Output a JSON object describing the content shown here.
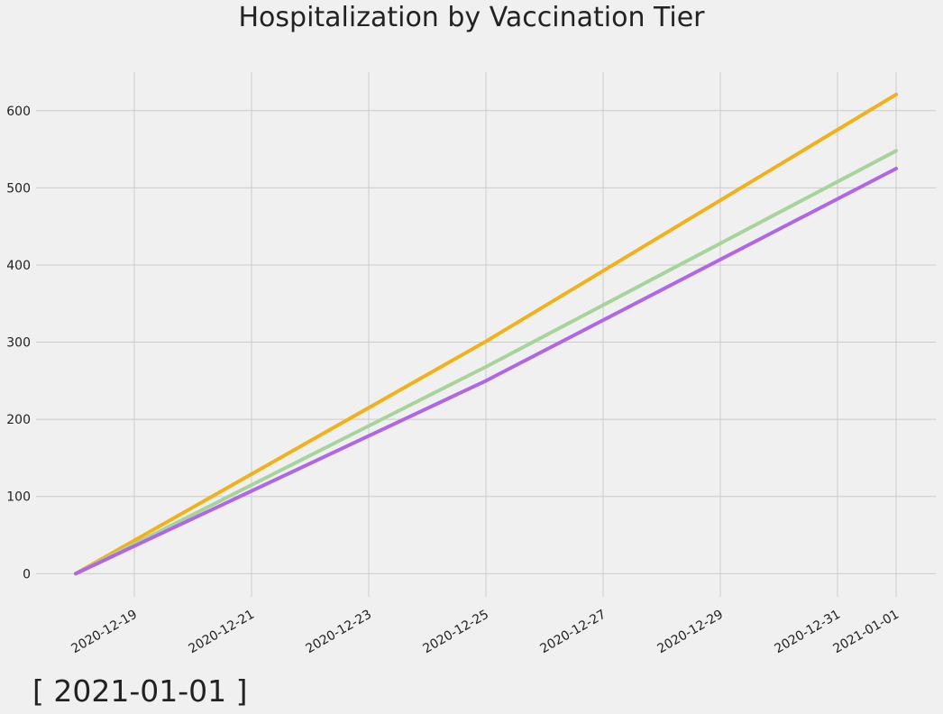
{
  "chart_data": {
    "type": "line",
    "title": "Hospitalization by Vaccination Tier",
    "xlabel": "",
    "ylabel": "",
    "x": [
      "2020-12-18",
      "2020-12-25",
      "2021-01-01"
    ],
    "series": [
      {
        "color": "#f0b11a",
        "values": [
          0,
          301,
          621
        ]
      },
      {
        "color": "#a6d49c",
        "values": [
          0,
          268,
          548
        ]
      },
      {
        "color": "#b066e8",
        "values": [
          0,
          250,
          525
        ]
      }
    ],
    "xlim": [
      "2020-12-17",
      "2021-01-01"
    ],
    "ylim": [
      -30,
      650
    ],
    "y_ticks": [
      0,
      100,
      200,
      300,
      400,
      500,
      600
    ],
    "x_ticks": [
      "2020-12-19",
      "2020-12-21",
      "2020-12-23",
      "2020-12-25",
      "2020-12-27",
      "2020-12-29",
      "2020-12-31",
      "2021-01-01"
    ],
    "grid": true,
    "legend": "none",
    "background": "#f0f0f0",
    "grid_color": "#cbcbcb"
  },
  "date_label": "[ 2021-01-01 ]"
}
